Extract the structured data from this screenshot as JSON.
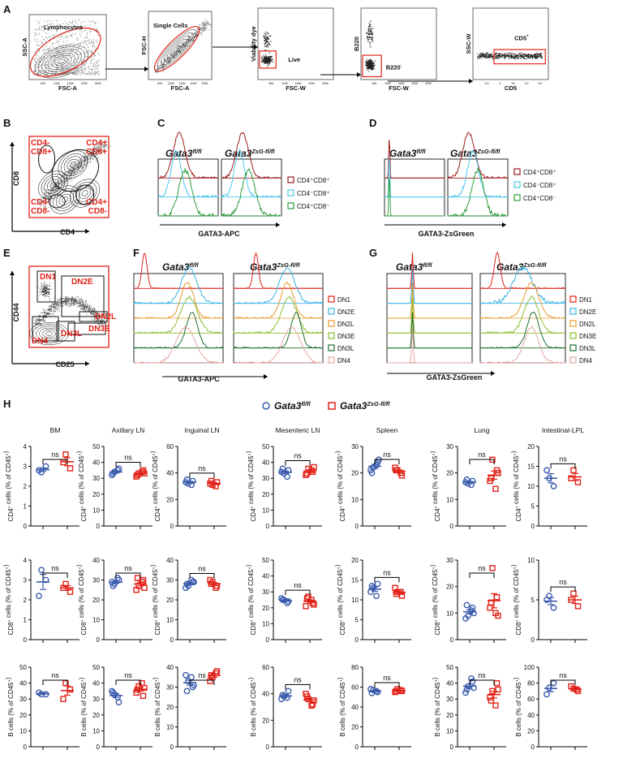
{
  "figure": {
    "panel_letters": [
      "A",
      "B",
      "C",
      "D",
      "E",
      "F",
      "G",
      "H"
    ]
  },
  "panel_a": {
    "plots": [
      {
        "ylabel": "SSC-A",
        "xlabel": "FSC-A",
        "gate_label": "Lymphocytes",
        "ticks": [
          "50K",
          "100K",
          "150K",
          "200K",
          "250K"
        ]
      },
      {
        "ylabel": "FSC-H",
        "xlabel": "FSC-A",
        "gate_label": "Single Cells",
        "ticks": [
          "50K",
          "100K",
          "150K",
          "200K",
          "250K"
        ]
      },
      {
        "ylabel": "Viability dye",
        "xlabel": "FSC-W",
        "gate_label": "Live",
        "ticks": [
          "50K",
          "100K",
          "150K",
          "200K",
          "250K"
        ]
      },
      {
        "ylabel": "B220",
        "xlabel": "FSC-W",
        "gate_label": "B220",
        "gate_sup": "-",
        "ticks": [
          "50K",
          "100K",
          "150K",
          "200K",
          "250K"
        ]
      },
      {
        "ylabel": "SSC-W",
        "xlabel": "CD5",
        "gate_label": "CD5",
        "gate_sup": "+",
        "ticks": [
          "-10³",
          "0",
          "10³",
          "10⁴",
          "10⁵"
        ]
      }
    ]
  },
  "panel_b": {
    "xlabel": "CD4",
    "ylabel": "CD8",
    "quadrants": [
      {
        "l1": "CD4-",
        "l2": "CD8+"
      },
      {
        "l1": "CD4+",
        "l2": "CD8+"
      },
      {
        "l1": "CD4-",
        "l2": "CD8-"
      },
      {
        "l1": "CD4+",
        "l2": "CD8-"
      }
    ]
  },
  "genotypes": {
    "ctrl": {
      "base": "Gata3",
      "sup": "fl/fl"
    },
    "ko": {
      "base": "Gata3",
      "sup": "ZsG-fl/fl"
    }
  },
  "panel_c": {
    "xlabel": "GATA3-APC",
    "legend": [
      "CD4⁺CD8⁺",
      "CD4⁻CD8⁺",
      "CD4⁺CD8⁻"
    ]
  },
  "panel_d": {
    "xlabel": "GATA3-ZsGreen",
    "legend": [
      "CD4⁺CD8⁺",
      "CD4⁻CD8⁺",
      "CD4⁺CD8⁻"
    ]
  },
  "panel_e": {
    "xlabel": "CD25",
    "ylabel": "CD44",
    "gates": [
      "DN1",
      "DN2E",
      "DN2L",
      "DN3E",
      "DN3L",
      "DN4"
    ]
  },
  "panel_f": {
    "xlabel": "GATA3-APC",
    "legend": [
      "DN1",
      "DN2E",
      "DN2L",
      "DN3E",
      "DN3L",
      "DN4"
    ]
  },
  "panel_g": {
    "xlabel": "GATA3-ZsGreen",
    "legend": [
      "DN1",
      "DN2E",
      "DN2L",
      "DN3E",
      "DN3L",
      "DN4"
    ]
  },
  "colors": {
    "red": "#e2231a",
    "blue": "#3b5bad",
    "ctrlc": "#3b5bad",
    "kor": "#e2231a",
    "dp": "#9b1c1c",
    "cd8": "#4ec7ea",
    "cd4": "#2e9c3a",
    "dn1": "#e2231a",
    "dn2e": "#3ab3e6",
    "dn2l": "#e89a2c",
    "dn3e": "#8dbf2e",
    "dn3l": "#1f6e2e",
    "dn4": "#e6a5a5"
  },
  "panel_h": {
    "tissues": [
      "BM",
      "Axillary LN",
      "Inguinal LN",
      "Mesenteric LN",
      "Spleen",
      "Lung",
      "Intestinal-LPL"
    ],
    "ns": "ns",
    "rows": [
      {
        "ylabel_pre": "CD4",
        "ylabel_sup": "+",
        "ylabel_post": " cells (% of CD45",
        "ylabel_sup2": "+",
        "ylabel_end": ")",
        "ymax": [
          4,
          50,
          60,
          50,
          30,
          30,
          20
        ],
        "ticks": [
          [
            0,
            1,
            2,
            3,
            4
          ],
          [
            0,
            10,
            20,
            30,
            40,
            50
          ],
          [
            0,
            20,
            40,
            60
          ],
          [
            0,
            10,
            20,
            30,
            40,
            50
          ],
          [
            0,
            10,
            20,
            30
          ],
          [
            0,
            10,
            20,
            30
          ],
          [
            0,
            5,
            10,
            15,
            20
          ]
        ],
        "ctrl": [
          [
            2.7,
            3.0,
            2.8
          ],
          [
            34,
            36,
            32,
            35,
            33
          ],
          [
            32,
            34,
            33,
            31,
            35
          ],
          [
            33,
            35,
            34,
            31,
            36
          ],
          [
            22,
            24,
            21,
            23,
            20,
            25
          ],
          [
            16,
            17,
            16.5,
            15.5,
            17.5
          ],
          [
            12,
            10,
            14
          ]
        ],
        "ko": [
          [
            3.6,
            2.9,
            3.2
          ],
          [
            33,
            35,
            31,
            34,
            32,
            33
          ],
          [
            31,
            33,
            32,
            30,
            34
          ],
          [
            36,
            34,
            32,
            35,
            33,
            37
          ],
          [
            21,
            19,
            22,
            20,
            21
          ],
          [
            25,
            21,
            17,
            14,
            18,
            20
          ],
          [
            14,
            11,
            12
          ]
        ]
      },
      {
        "ylabel_pre": "CD8",
        "ylabel_sup": "+",
        "ylabel_post": " cells (% of CD45",
        "ylabel_sup2": "+",
        "ylabel_end": ")",
        "ymax": [
          4,
          40,
          40,
          50,
          20,
          30,
          10
        ],
        "ticks": [
          [
            0,
            1,
            2,
            3,
            4
          ],
          [
            0,
            10,
            20,
            30,
            40
          ],
          [
            0,
            10,
            20,
            30,
            40
          ],
          [
            0,
            10,
            20,
            30,
            40,
            50
          ],
          [
            0,
            5,
            10,
            15,
            20
          ],
          [
            0,
            10,
            20,
            30
          ],
          [
            0,
            5,
            10
          ]
        ],
        "ctrl": [
          [
            3.5,
            3.0,
            2.2
          ],
          [
            28,
            30,
            29,
            31,
            27
          ],
          [
            27,
            29,
            26,
            30,
            28,
            29
          ],
          [
            25,
            24,
            26,
            23,
            25
          ],
          [
            13,
            14,
            12,
            11,
            13.5
          ],
          [
            9,
            12,
            8,
            11,
            13,
            10
          ],
          [
            5.5,
            4,
            5
          ]
        ],
        "ko": [
          [
            2.8,
            2.4,
            2.6
          ],
          [
            27,
            30,
            25,
            29,
            31,
            26
          ],
          [
            29,
            27,
            30,
            26,
            28
          ],
          [
            27,
            23,
            21,
            25,
            26,
            22
          ],
          [
            12,
            11,
            13,
            12,
            11.5
          ],
          [
            27,
            16,
            12,
            10,
            14,
            9
          ],
          [
            5.8,
            4.2,
            5
          ]
        ],
        "ymax_note": ""
      },
      {
        "ylabel_pre": "B cells (% of CD45",
        "ylabel_sup": "+",
        "ylabel_post": ")",
        "ylabel_sup2": "",
        "ylabel_end": "",
        "ymax": [
          50,
          50,
          40,
          60,
          80,
          50,
          100
        ],
        "ticks": [
          [
            0,
            10,
            20,
            30,
            40,
            50
          ],
          [
            0,
            10,
            20,
            30,
            40,
            50
          ],
          [
            0,
            10,
            20,
            30,
            40
          ],
          [
            0,
            20,
            40,
            60
          ],
          [
            0,
            20,
            40,
            60,
            80
          ],
          [
            0,
            10,
            20,
            30,
            40,
            50
          ],
          [
            0,
            20,
            40,
            60,
            80,
            100
          ]
        ],
        "ctrl": [
          [
            33,
            33,
            34
          ],
          [
            33,
            28,
            35,
            31,
            34
          ],
          [
            33,
            30,
            36,
            35,
            28,
            31
          ],
          [
            38,
            42,
            36,
            37,
            39
          ],
          [
            57,
            55,
            58,
            56,
            54
          ],
          [
            38,
            41,
            34,
            43,
            36,
            37
          ],
          [
            74,
            80,
            66
          ]
        ],
        "ko": [
          [
            40,
            36,
            30
          ],
          [
            38,
            32,
            34,
            40,
            36,
            37
          ],
          [
            35,
            38,
            33,
            37,
            36
          ],
          [
            36,
            32,
            40,
            31,
            38,
            35
          ],
          [
            58,
            56,
            55,
            57,
            56
          ],
          [
            35,
            40,
            31,
            26,
            29,
            36
          ],
          [
            73,
            70,
            76,
            72
          ]
        ]
      }
    ]
  }
}
